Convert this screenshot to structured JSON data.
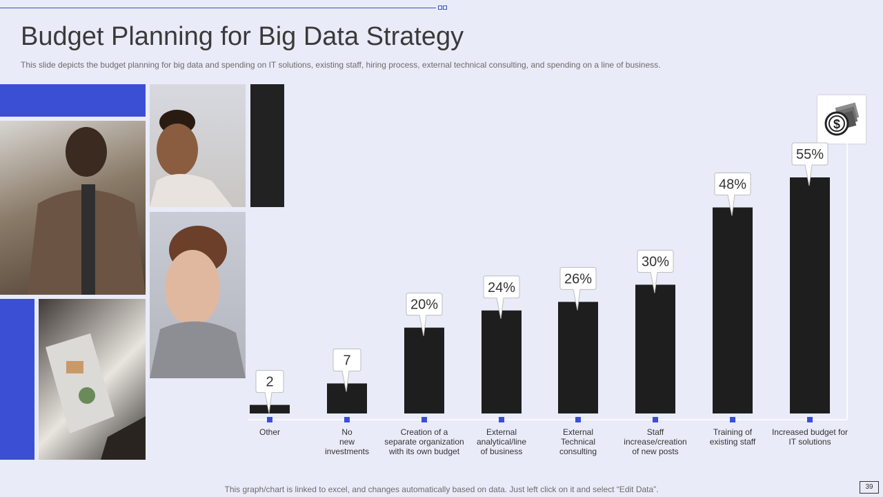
{
  "slide": {
    "title": "Budget Planning for Big Data Strategy",
    "subtitle": "This slide depicts the budget planning for big data and spending on IT solutions, existing staff, hiring process, external technical consulting, and spending on a line of business.",
    "footer": "This graph/chart is linked to excel,  and changes automatically based on data. Just left click on it and select “Edit Data”.",
    "page_number": "39"
  },
  "colors": {
    "bar": "#1e1e1e",
    "accent": "#3b4fd4",
    "background": "#e9ebf8"
  },
  "icons": {
    "corner_icon": "money-dollar-icon"
  },
  "chart_data": {
    "type": "bar",
    "categories": [
      "Other",
      "No new investments",
      "Creation of a separate organization with its own budget",
      "External analytical/line of business",
      "External Technical consulting",
      "Staff increase/creation of new posts",
      "Training of existing staff",
      "Increased budget for IT solutions"
    ],
    "category_lines": [
      [
        "Other"
      ],
      [
        "No",
        "new",
        "investments"
      ],
      [
        "Creation of a",
        "separate organization",
        "with its own budget"
      ],
      [
        "External",
        "analytical/line",
        "of business"
      ],
      [
        "External",
        "Technical",
        "consulting"
      ],
      [
        "Staff",
        "increase/creation",
        "of new posts"
      ],
      [
        "Training of",
        "existing staff"
      ],
      [
        "Increased budget for",
        "IT solutions"
      ]
    ],
    "values": [
      2,
      7,
      20,
      24,
      26,
      30,
      48,
      55
    ],
    "data_labels": [
      "2",
      "7",
      "20%",
      "24%",
      "26%",
      "30%",
      "48%",
      "55%"
    ],
    "ylim": [
      0,
      55
    ]
  }
}
